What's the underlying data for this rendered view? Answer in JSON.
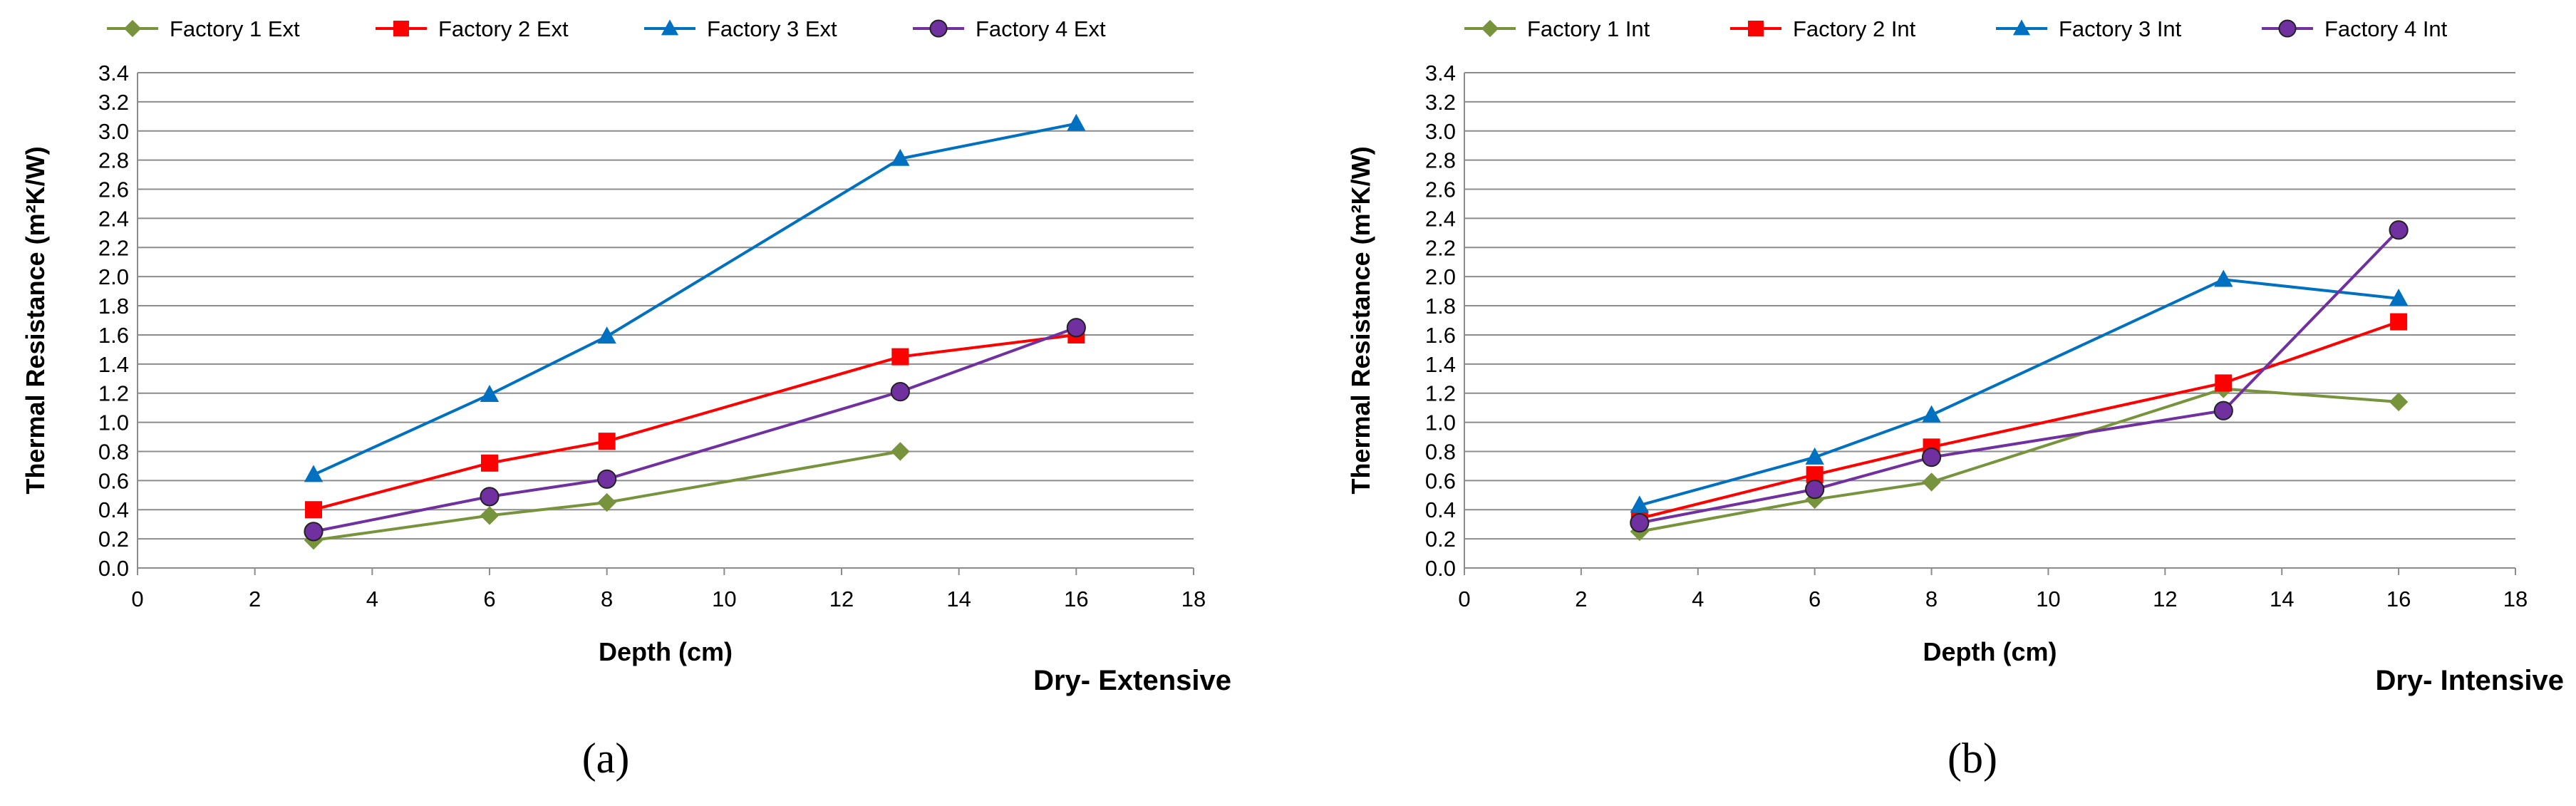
{
  "chart_data": [
    {
      "type": "line",
      "panel_label": "(a)",
      "corner_caption": "Dry- Extensive",
      "xlabel": "Depth (cm)",
      "ylabel": "Thermal Resistance (m²K/W)",
      "xlim": [
        0,
        18
      ],
      "ylim": [
        0,
        3.4
      ],
      "xticks": [
        "0",
        "2",
        "4",
        "6",
        "8",
        "10",
        "12",
        "14",
        "16",
        "18"
      ],
      "yticks": [
        "0.0",
        "0.2",
        "0.4",
        "0.6",
        "0.8",
        "1.0",
        "1.2",
        "1.4",
        "1.6",
        "1.8",
        "2.0",
        "2.2",
        "2.4",
        "2.6",
        "2.8",
        "3.0",
        "3.2",
        "3.4"
      ],
      "grid": "horizontal",
      "legend_position": "top",
      "series": [
        {
          "name": "Factory 1 Ext",
          "color": "#77933C",
          "marker": "diamond",
          "x": [
            3,
            6,
            8,
            13
          ],
          "y": [
            0.19,
            0.36,
            0.45,
            0.8
          ]
        },
        {
          "name": "Factory 2 Ext",
          "color": "#FF0000",
          "marker": "square",
          "x": [
            3,
            6,
            8,
            13,
            16
          ],
          "y": [
            0.4,
            0.72,
            0.87,
            1.45,
            1.6
          ]
        },
        {
          "name": "Factory 3 Ext",
          "color": "#0070C0",
          "marker": "triangle",
          "x": [
            3,
            6,
            8,
            13,
            16
          ],
          "y": [
            0.64,
            1.19,
            1.59,
            2.81,
            3.05
          ]
        },
        {
          "name": "Factory 4 Ext",
          "color": "#7030A0",
          "marker": "circle",
          "x": [
            3,
            6,
            8,
            13,
            16
          ],
          "y": [
            0.25,
            0.49,
            0.61,
            1.21,
            1.65
          ]
        }
      ]
    },
    {
      "type": "line",
      "panel_label": "(b)",
      "corner_caption": "Dry- Intensive",
      "xlabel": "Depth (cm)",
      "ylabel": "Thermal Resistance (m²K/W)",
      "xlim": [
        0,
        18
      ],
      "ylim": [
        0,
        3.4
      ],
      "xticks": [
        "0",
        "2",
        "4",
        "6",
        "8",
        "10",
        "12",
        "14",
        "16",
        "18"
      ],
      "yticks": [
        "0.0",
        "0.2",
        "0.4",
        "0.6",
        "0.8",
        "1.0",
        "1.2",
        "1.4",
        "1.6",
        "1.8",
        "2.0",
        "2.2",
        "2.4",
        "2.6",
        "2.8",
        "3.0",
        "3.2",
        "3.4"
      ],
      "grid": "horizontal",
      "legend_position": "top",
      "series": [
        {
          "name": "Factory 1 Int",
          "color": "#77933C",
          "marker": "diamond",
          "x": [
            3,
            6,
            8,
            13,
            16
          ],
          "y": [
            0.25,
            0.47,
            0.59,
            1.23,
            1.14
          ]
        },
        {
          "name": "Factory 2 Int",
          "color": "#FF0000",
          "marker": "square",
          "x": [
            3,
            6,
            8,
            13,
            16
          ],
          "y": [
            0.34,
            0.64,
            0.83,
            1.27,
            1.69
          ]
        },
        {
          "name": "Factory 3 Int",
          "color": "#0070C0",
          "marker": "triangle",
          "x": [
            3,
            6,
            8,
            13,
            16
          ],
          "y": [
            0.43,
            0.76,
            1.05,
            1.98,
            1.85
          ]
        },
        {
          "name": "Factory 4 Int",
          "color": "#7030A0",
          "marker": "circle",
          "x": [
            3,
            6,
            8,
            13,
            16
          ],
          "y": [
            0.31,
            0.54,
            0.76,
            1.08,
            2.32
          ]
        }
      ]
    }
  ]
}
